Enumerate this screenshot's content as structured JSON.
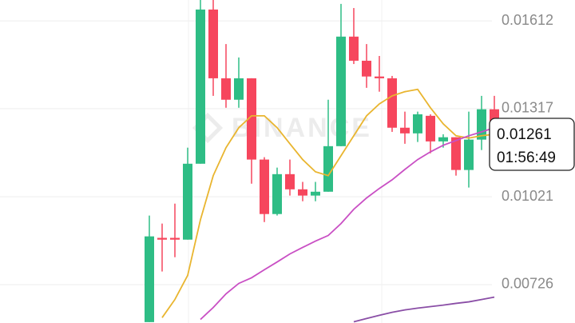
{
  "chart_data": {
    "type": "candlestick",
    "watermark": "BINANCE",
    "categories": [
      null,
      null,
      null,
      null,
      null,
      null,
      null,
      null,
      null,
      null,
      null,
      null,
      null,
      null,
      null,
      null,
      null,
      null,
      null,
      null,
      null,
      null,
      null,
      null,
      null,
      null,
      null,
      null
    ],
    "open": [
      0.006,
      0.00883,
      0.00883,
      0.00877,
      0.01132,
      0.0165,
      0.01419,
      0.01347,
      0.01419,
      0.01146,
      0.00963,
      0.01097,
      0.01046,
      0.01025,
      0.01038,
      0.01191,
      0.01559,
      0.01478,
      0.01425,
      0.01419,
      0.01253,
      0.01234,
      0.01293,
      0.01207,
      0.01221,
      0.01111,
      0.01213,
      0.01315
    ],
    "high": [
      0.00958,
      0.00931,
      0.00998,
      0.01186,
      0.01682,
      0.01682,
      0.01534,
      0.01489,
      0.01419,
      0.01154,
      0.01119,
      0.01146,
      0.01071,
      0.01071,
      0.01347,
      0.01669,
      0.01655,
      0.01534,
      0.01494,
      0.01427,
      0.01307,
      0.01307,
      0.01298,
      0.01231,
      0.01221,
      0.01307,
      0.0136,
      0.0136
    ],
    "low": [
      0.006,
      0.0077,
      0.00818,
      0.00877,
      0.01132,
      0.0136,
      0.0132,
      0.0132,
      0.01065,
      0.00936,
      0.00958,
      0.01025,
      0.01006,
      0.01006,
      0.01038,
      0.01191,
      0.01467,
      0.01387,
      0.01374,
      0.01239,
      0.01199,
      0.01205,
      0.01167,
      0.01186,
      0.01092,
      0.01052,
      0.01178,
      0.01253
    ],
    "close": [
      0.00888,
      0.00877,
      0.00877,
      0.01132,
      0.0165,
      0.01419,
      0.01347,
      0.01419,
      0.01146,
      0.00963,
      0.01097,
      0.01046,
      0.01025,
      0.01038,
      0.01191,
      0.01559,
      0.01478,
      0.01425,
      0.01419,
      0.01253,
      0.01234,
      0.01298,
      0.01207,
      0.01221,
      0.01111,
      0.01213,
      0.01315,
      0.01261
    ],
    "up_color": "#2ebd85",
    "down_color": "#f6465d",
    "lines": [
      {
        "color": "#e9b52f",
        "values": [
          null,
          0.00615,
          0.00676,
          0.00757,
          0.00944,
          0.01092,
          0.01186,
          0.01253,
          0.01293,
          0.01293,
          0.01253,
          0.01199,
          0.01146,
          0.01105,
          0.01092,
          0.01159,
          0.01226,
          0.01293,
          0.01333,
          0.0136,
          0.01374,
          0.01382,
          0.0132,
          0.01266,
          0.01226,
          0.01218,
          0.01226,
          0.01231
        ]
      },
      {
        "color": "#c94fc4",
        "values": [
          null,
          null,
          null,
          null,
          0.00609,
          0.00649,
          0.00695,
          0.0073,
          0.00749,
          0.00776,
          0.00802,
          0.00829,
          0.00851,
          0.00872,
          0.00891,
          0.00931,
          0.00979,
          0.01017,
          0.01049,
          0.01078,
          0.01113,
          0.01146,
          0.01172,
          0.01194,
          0.0121,
          0.01226,
          0.01239,
          0.01253
        ]
      },
      {
        "color": "#8a4ea6",
        "values": [
          null,
          null,
          null,
          null,
          null,
          null,
          null,
          null,
          null,
          null,
          null,
          null,
          null,
          null,
          null,
          null,
          0.00601,
          0.00612,
          0.00623,
          0.00633,
          0.00641,
          0.00647,
          0.00652,
          0.00657,
          0.00663,
          0.00668,
          0.00676,
          0.00684
        ]
      }
    ],
    "ylim": [
      0.00597,
      0.01682
    ],
    "yticks": [
      0.01612,
      0.01317,
      0.01021,
      0.00726
    ],
    "grid": true,
    "last_price": 0.01261,
    "countdown": "01:56:49"
  }
}
